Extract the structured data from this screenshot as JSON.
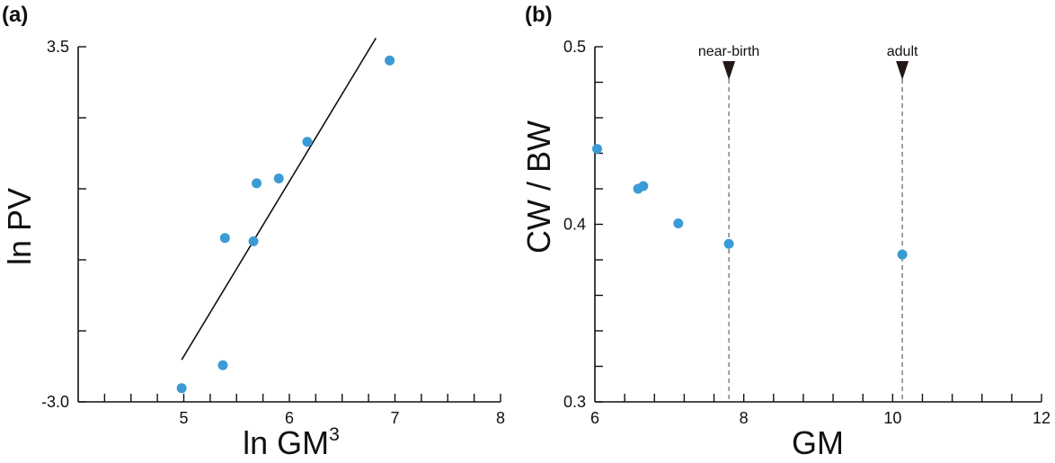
{
  "colors": {
    "points": "#3a9bd5",
    "axes": "#111111",
    "marker": "#231815",
    "dashed": "#8a8a8a"
  },
  "chart_data": [
    {
      "panel_label": "(a)",
      "type": "scatter",
      "title": "",
      "xlabel_main": "ln GM",
      "xlabel_sup": "3",
      "ylabel": "ln PV",
      "xlim": [
        4,
        8
      ],
      "ylim": [
        -3.0,
        3.5
      ],
      "x_major_ticks": [
        5,
        6,
        7,
        8
      ],
      "x_tick_labels": [
        "5",
        "6",
        "7",
        "8"
      ],
      "x_minor_step": 0.25,
      "y_major_ticks": [
        -3.0,
        3.5
      ],
      "y_tick_labels": [
        "-3.0",
        "3.5"
      ],
      "y_minor_ticks": [
        -1.7,
        -0.4,
        0.9,
        2.2
      ],
      "grid": false,
      "points": [
        {
          "x": 4.98,
          "y": -2.75
        },
        {
          "x": 5.37,
          "y": -2.33
        },
        {
          "x": 5.39,
          "y": 0.0
        },
        {
          "x": 5.66,
          "y": -0.06
        },
        {
          "x": 5.69,
          "y": 1.0
        },
        {
          "x": 5.9,
          "y": 1.09
        },
        {
          "x": 6.17,
          "y": 1.76
        },
        {
          "x": 6.95,
          "y": 3.25
        }
      ],
      "fit_line": [
        {
          "x": 4.98,
          "y": -2.23
        },
        {
          "x": 6.82,
          "y": 3.66
        }
      ]
    },
    {
      "panel_label": "(b)",
      "type": "scatter",
      "title": "",
      "xlabel": "GM",
      "ylabel": "CW / BW",
      "xlim": [
        6,
        12
      ],
      "ylim": [
        0.3,
        0.5
      ],
      "x_major_ticks": [
        6,
        8,
        10,
        12
      ],
      "x_tick_labels": [
        "6",
        "8",
        "10",
        "12"
      ],
      "x_minor_step": 0.4,
      "y_major_ticks": [
        0.3,
        0.4,
        0.5
      ],
      "y_tick_labels": [
        "0.3",
        "0.4",
        "0.5"
      ],
      "y_minor_ticks": [
        0.32,
        0.34,
        0.36,
        0.38,
        0.42,
        0.44,
        0.46,
        0.48
      ],
      "grid": false,
      "points": [
        {
          "x": 6.03,
          "y": 0.4425
        },
        {
          "x": 6.58,
          "y": 0.42
        },
        {
          "x": 6.65,
          "y": 0.4215
        },
        {
          "x": 7.12,
          "y": 0.4005
        },
        {
          "x": 7.8,
          "y": 0.389
        },
        {
          "x": 10.13,
          "y": 0.383
        }
      ],
      "markers": [
        {
          "x": 7.8,
          "label": "near-birth"
        },
        {
          "x": 10.13,
          "label": "adult"
        }
      ]
    }
  ]
}
